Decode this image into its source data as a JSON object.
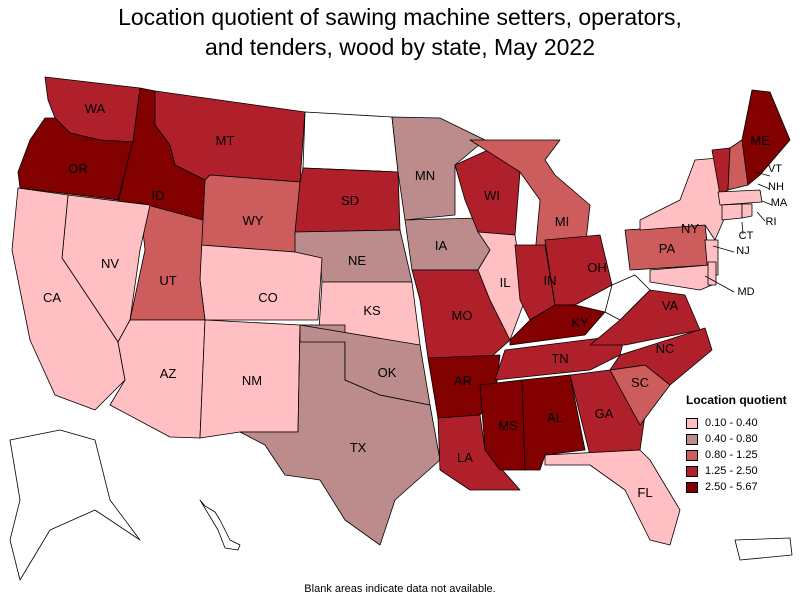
{
  "title_line1": "Location quotient of sawing machine setters, operators,",
  "title_line2": "and tenders, wood by state, May 2022",
  "footnote": "Blank areas indicate data not available.",
  "legend": {
    "title": "Location quotient",
    "items": [
      {
        "label": "0.10 - 0.40",
        "color": "#ffbfc3"
      },
      {
        "label": "0.40 - 0.80",
        "color": "#bc8c8c"
      },
      {
        "label": "0.80 - 1.25",
        "color": "#cd5c5c"
      },
      {
        "label": "1.25 - 2.50",
        "color": "#b0202a"
      },
      {
        "label": "2.50 - 5.67",
        "color": "#830000"
      }
    ]
  },
  "states": {
    "WA": {
      "class": 3
    },
    "OR": {
      "class": 4
    },
    "ID": {
      "class": 4
    },
    "MT": {
      "class": 3
    },
    "WY": {
      "class": 2
    },
    "ND": {
      "class": null
    },
    "SD": {
      "class": 3
    },
    "MN": {
      "class": 1
    },
    "WI": {
      "class": 3
    },
    "MI": {
      "class": 2
    },
    "CA": {
      "class": 0
    },
    "NV": {
      "class": 0
    },
    "UT": {
      "class": 2
    },
    "CO": {
      "class": 0
    },
    "NE": {
      "class": 1
    },
    "IA": {
      "class": 1
    },
    "IL": {
      "class": 0
    },
    "IN": {
      "class": 3
    },
    "OH": {
      "class": 3
    },
    "KS": {
      "class": 0
    },
    "MO": {
      "class": 3
    },
    "KY": {
      "class": 4
    },
    "WV": {
      "class": null
    },
    "AZ": {
      "class": 0
    },
    "NM": {
      "class": 0
    },
    "OK": {
      "class": 1
    },
    "AR": {
      "class": 4
    },
    "TN": {
      "class": 3
    },
    "VA": {
      "class": 3
    },
    "NC": {
      "class": 3
    },
    "TX": {
      "class": 1
    },
    "LA": {
      "class": 3
    },
    "MS": {
      "class": 4
    },
    "AL": {
      "class": 4
    },
    "GA": {
      "class": 3
    },
    "SC": {
      "class": 2
    },
    "FL": {
      "class": 0
    },
    "PA": {
      "class": 2
    },
    "NY": {
      "class": 0
    },
    "NJ": {
      "class": 0
    },
    "MD": {
      "class": 0
    },
    "DE": {
      "class": 0
    },
    "CT": {
      "class": 0
    },
    "RI": {
      "class": 0
    },
    "MA": {
      "class": 0
    },
    "VT": {
      "class": 3
    },
    "NH": {
      "class": 2
    },
    "ME": {
      "class": 4
    },
    "AK": {
      "class": null
    },
    "HI": {
      "class": null
    },
    "PR": {
      "class": null
    }
  },
  "labels": [
    "WA",
    "OR",
    "ID",
    "MT",
    "WY",
    "SD",
    "MN",
    "WI",
    "MI",
    "CA",
    "NV",
    "UT",
    "CO",
    "NE",
    "IA",
    "IL",
    "IN",
    "OH",
    "KS",
    "MO",
    "KY",
    "AZ",
    "NM",
    "OK",
    "AR",
    "TN",
    "VA",
    "NC",
    "TX",
    "LA",
    "MS",
    "AL",
    "GA",
    "SC",
    "FL",
    "PA",
    "NY",
    "ME",
    "VT",
    "NH",
    "MA",
    "RI",
    "CT",
    "NJ",
    "MD"
  ]
}
